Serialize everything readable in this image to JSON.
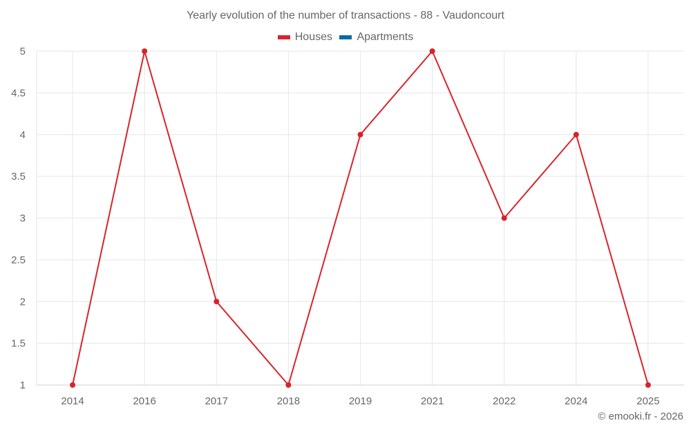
{
  "title": "Yearly evolution of the number of transactions - 88 - Vaudoncourt",
  "legend": [
    {
      "label": "Houses",
      "color": "#d8232a"
    },
    {
      "label": "Apartments",
      "color": "#0b6aa2"
    }
  ],
  "credits": "© emooki.fr - 2026",
  "chart_data": {
    "type": "line",
    "title": "Yearly evolution of the number of transactions - 88 - Vaudoncourt",
    "xlabel": "",
    "ylabel": "",
    "categories": [
      "2014",
      "2016",
      "2017",
      "2018",
      "2019",
      "2021",
      "2022",
      "2024",
      "2025"
    ],
    "series": [
      {
        "name": "Houses",
        "color": "#d8232a",
        "values": [
          1,
          5,
          2,
          1,
          4,
          5,
          3,
          4,
          1
        ]
      },
      {
        "name": "Apartments",
        "color": "#0b6aa2",
        "values": []
      }
    ],
    "yticks": [
      "1",
      "1.5",
      "2",
      "2.5",
      "3",
      "3.5",
      "4",
      "4.5",
      "5"
    ],
    "ylim": [
      1,
      5
    ],
    "grid": true,
    "legend_position": "top"
  }
}
